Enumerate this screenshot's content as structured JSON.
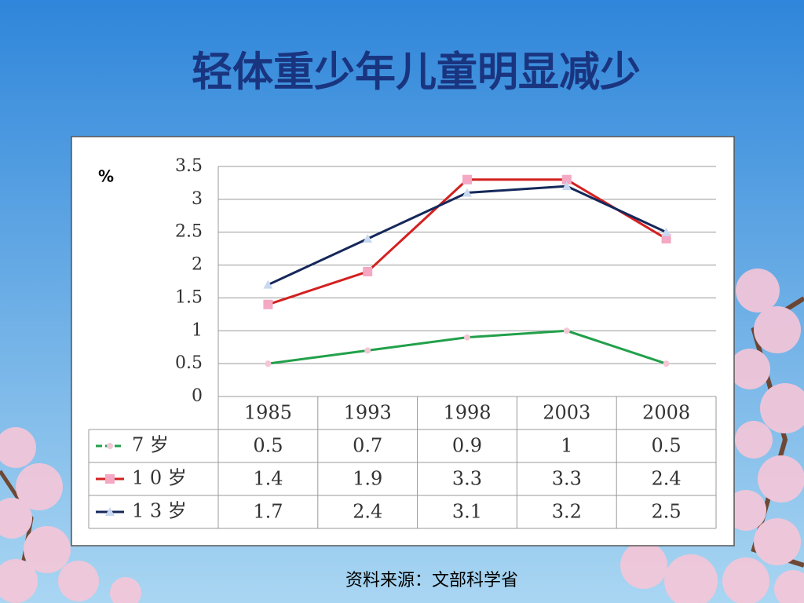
{
  "chart_data": {
    "type": "line",
    "title": "轻体重少年儿童明显减少",
    "y_label": "%",
    "source": "资料来源：文部科学省",
    "categories": [
      "1985",
      "1993",
      "1998",
      "2003",
      "2008"
    ],
    "series": [
      {
        "name": "7 岁",
        "color": "#22a04a",
        "values": [
          0.5,
          0.7,
          0.9,
          1,
          0.5
        ]
      },
      {
        "name": "1 0 岁",
        "color": "#d42020",
        "values": [
          1.4,
          1.9,
          3.3,
          3.3,
          2.4
        ]
      },
      {
        "name": "1 3 岁",
        "color": "#15285a",
        "values": [
          1.7,
          2.4,
          3.1,
          3.2,
          2.5
        ]
      }
    ],
    "ylim": [
      0,
      3.5
    ],
    "yticks": [
      0,
      0.5,
      1,
      1.5,
      2,
      2.5,
      3,
      3.5
    ],
    "grid": true
  }
}
